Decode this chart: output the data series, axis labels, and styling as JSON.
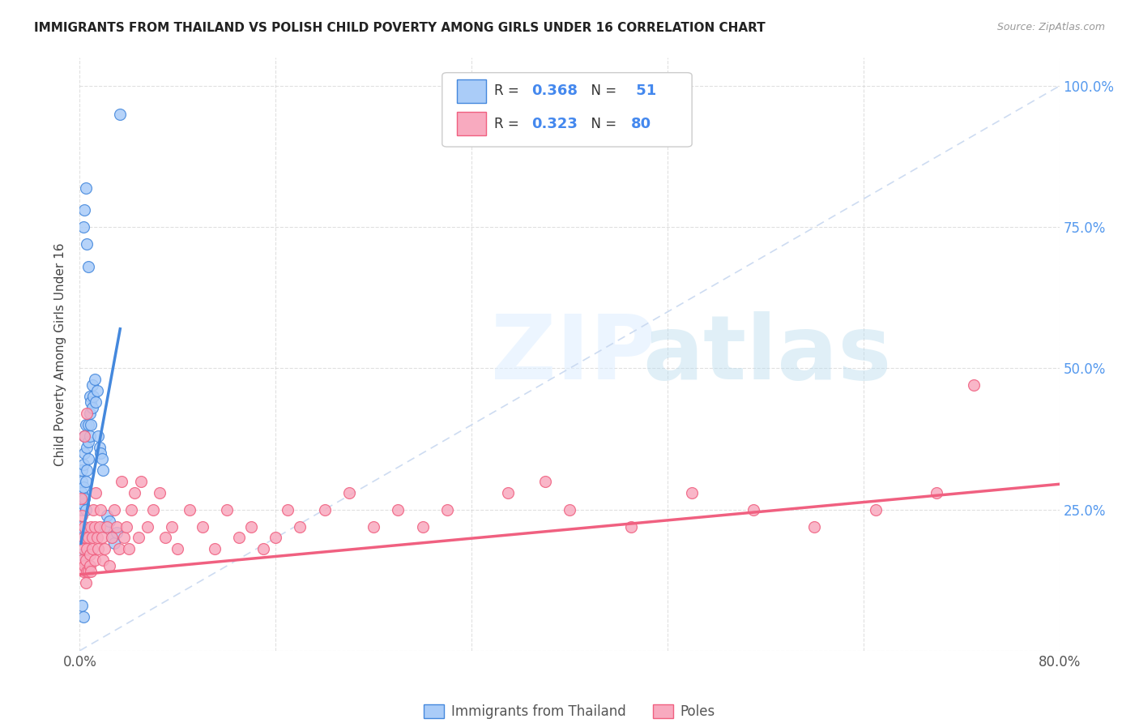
{
  "title": "IMMIGRANTS FROM THAILAND VS POLISH CHILD POVERTY AMONG GIRLS UNDER 16 CORRELATION CHART",
  "source": "Source: ZipAtlas.com",
  "ylabel": "Child Poverty Among Girls Under 16",
  "legend_r1": "0.368",
  "legend_n1": " 51",
  "legend_r2": "0.323",
  "legend_n2": "80",
  "color_thailand": "#aaccf8",
  "color_poles": "#f8aabf",
  "color_trendline_thailand": "#4488dd",
  "color_trendline_poles": "#f06080",
  "color_diagonal": "#c8d8f0",
  "background": "#ffffff",
  "xlim": [
    0.0,
    0.8
  ],
  "ylim": [
    0.0,
    1.05
  ],
  "trendline_thai_x0": 0.001,
  "trendline_thai_x1": 0.033,
  "trendline_thai_y0": 0.19,
  "trendline_thai_y1": 0.57,
  "trendline_poles_x0": 0.0,
  "trendline_poles_x1": 0.8,
  "trendline_poles_y0": 0.135,
  "trendline_poles_y1": 0.295
}
